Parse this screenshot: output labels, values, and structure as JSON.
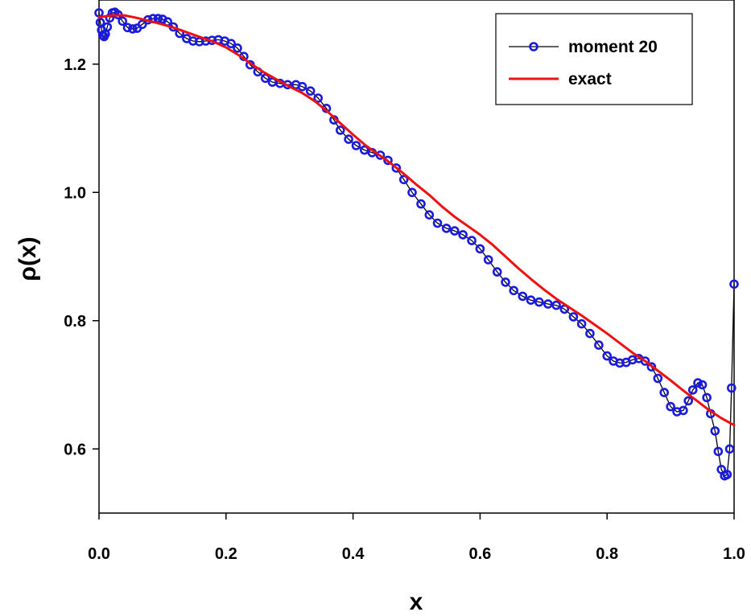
{
  "chart_data": {
    "type": "line",
    "xlabel": "x",
    "ylabel": "ρ(x)",
    "xlim": [
      0.0,
      1.0
    ],
    "ylim": [
      0.5,
      1.3
    ],
    "x_ticks": [
      "0.0",
      "0.2",
      "0.4",
      "0.6",
      "0.8",
      "1.0"
    ],
    "x_tick_values": [
      0.0,
      0.2,
      0.4,
      0.6,
      0.8,
      1.0
    ],
    "y_ticks": [
      "0.6",
      "0.8",
      "1.0",
      "1.2"
    ],
    "y_tick_values": [
      0.6,
      0.8,
      1.0,
      1.2
    ],
    "legend_position": "top-right",
    "grid": false,
    "series": [
      {
        "name": "moment 20",
        "line_color": "#000000",
        "marker_color": "#1a1adf",
        "marker": "circle",
        "x": [
          0.0,
          0.002,
          0.004,
          0.006,
          0.008,
          0.01,
          0.013,
          0.017,
          0.021,
          0.025,
          0.03,
          0.037,
          0.045,
          0.053,
          0.06,
          0.068,
          0.077,
          0.085,
          0.093,
          0.1,
          0.108,
          0.117,
          0.127,
          0.138,
          0.148,
          0.158,
          0.168,
          0.178,
          0.188,
          0.198,
          0.208,
          0.218,
          0.228,
          0.238,
          0.25,
          0.262,
          0.273,
          0.285,
          0.297,
          0.31,
          0.32,
          0.333,
          0.345,
          0.358,
          0.37,
          0.38,
          0.393,
          0.405,
          0.418,
          0.43,
          0.443,
          0.455,
          0.468,
          0.48,
          0.493,
          0.507,
          0.52,
          0.533,
          0.547,
          0.56,
          0.573,
          0.587,
          0.6,
          0.613,
          0.627,
          0.64,
          0.653,
          0.667,
          0.68,
          0.693,
          0.707,
          0.72,
          0.733,
          0.747,
          0.76,
          0.773,
          0.787,
          0.8,
          0.81,
          0.82,
          0.83,
          0.84,
          0.85,
          0.86,
          0.87,
          0.88,
          0.89,
          0.9,
          0.91,
          0.92,
          0.928,
          0.935,
          0.943,
          0.95,
          0.957,
          0.963,
          0.97,
          0.975,
          0.98,
          0.985,
          0.989,
          0.993,
          0.996,
          1.0
        ],
        "y": [
          1.28,
          1.265,
          1.253,
          1.245,
          1.243,
          1.247,
          1.258,
          1.272,
          1.28,
          1.281,
          1.277,
          1.267,
          1.257,
          1.255,
          1.256,
          1.262,
          1.269,
          1.271,
          1.271,
          1.27,
          1.266,
          1.258,
          1.248,
          1.24,
          1.236,
          1.235,
          1.236,
          1.237,
          1.238,
          1.236,
          1.232,
          1.225,
          1.212,
          1.199,
          1.188,
          1.178,
          1.172,
          1.17,
          1.168,
          1.168,
          1.165,
          1.158,
          1.147,
          1.131,
          1.113,
          1.097,
          1.083,
          1.073,
          1.066,
          1.062,
          1.058,
          1.05,
          1.038,
          1.02,
          1.0,
          0.982,
          0.965,
          0.952,
          0.944,
          0.94,
          0.934,
          0.925,
          0.912,
          0.895,
          0.876,
          0.86,
          0.847,
          0.838,
          0.832,
          0.829,
          0.826,
          0.824,
          0.818,
          0.806,
          0.795,
          0.78,
          0.762,
          0.745,
          0.737,
          0.734,
          0.735,
          0.739,
          0.741,
          0.737,
          0.728,
          0.71,
          0.688,
          0.666,
          0.658,
          0.66,
          0.675,
          0.692,
          0.703,
          0.7,
          0.68,
          0.655,
          0.628,
          0.596,
          0.568,
          0.558,
          0.56,
          0.6,
          0.695,
          0.857
        ]
      },
      {
        "name": "exact",
        "line_color": "#ee1111",
        "x": [
          0.0,
          0.02,
          0.04,
          0.06,
          0.08,
          0.1,
          0.12,
          0.14,
          0.16,
          0.18,
          0.2,
          0.22,
          0.24,
          0.26,
          0.28,
          0.3,
          0.32,
          0.34,
          0.36,
          0.38,
          0.4,
          0.42,
          0.44,
          0.46,
          0.48,
          0.5,
          0.52,
          0.54,
          0.56,
          0.58,
          0.6,
          0.62,
          0.64,
          0.66,
          0.68,
          0.7,
          0.72,
          0.74,
          0.76,
          0.78,
          0.8,
          0.82,
          0.84,
          0.86,
          0.88,
          0.9,
          0.92,
          0.94,
          0.96,
          0.98,
          1.0
        ],
        "y": [
          1.273,
          1.276,
          1.276,
          1.272,
          1.267,
          1.262,
          1.256,
          1.249,
          1.242,
          1.235,
          1.226,
          1.214,
          1.2,
          1.187,
          1.176,
          1.165,
          1.155,
          1.142,
          1.126,
          1.108,
          1.09,
          1.073,
          1.059,
          1.045,
          1.029,
          1.012,
          0.996,
          0.978,
          0.962,
          0.948,
          0.934,
          0.918,
          0.9,
          0.882,
          0.865,
          0.849,
          0.834,
          0.821,
          0.808,
          0.794,
          0.78,
          0.765,
          0.75,
          0.737,
          0.722,
          0.707,
          0.691,
          0.676,
          0.661,
          0.648,
          0.637
        ]
      }
    ]
  }
}
